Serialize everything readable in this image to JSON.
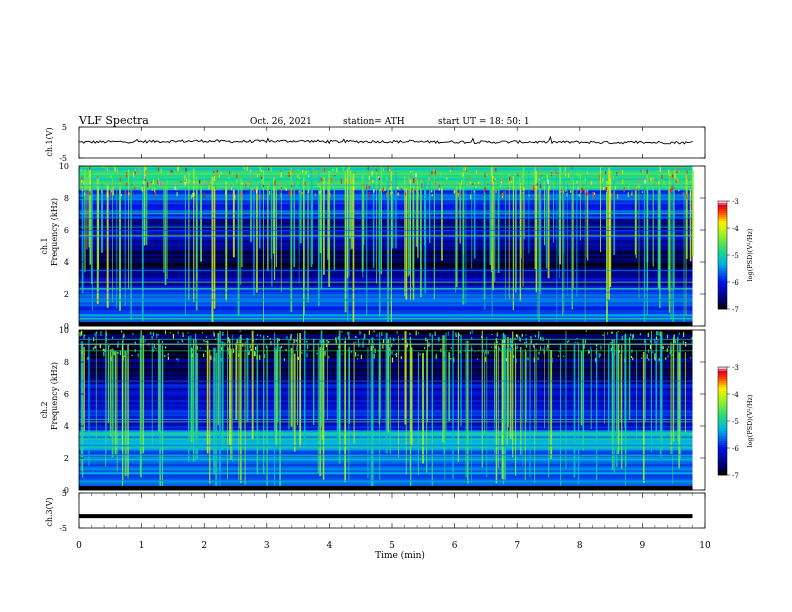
{
  "header": {
    "title": "VLF  Spectra",
    "date": "Oct. 26,  2021",
    "station": "station= ATH",
    "start": "start  UT  =    18: 50: 1"
  },
  "chart_data": [
    {
      "type": "line",
      "id": "ch1_waveform",
      "ylabel": "ch.1(V)",
      "ylim": [
        -5,
        5
      ],
      "yticks": [
        "5",
        "-5"
      ],
      "xlim": [
        0,
        10
      ],
      "series": [
        {
          "color": "#000000",
          "note": "noisy baseline signal slightly above 0 V across 0 to 9.8 min",
          "x": [
            0,
            0.5,
            1.0,
            1.5,
            2.0,
            2.5,
            3.0,
            3.5,
            4.0,
            4.5,
            5.0,
            5.5,
            6.0,
            6.5,
            7.0,
            7.5,
            8.0,
            8.5,
            9.0,
            9.5,
            9.8
          ],
          "y": [
            0.1,
            0.2,
            0.3,
            0.4,
            0.5,
            0.3,
            0.4,
            0.5,
            0.3,
            0.3,
            0.3,
            0.2,
            0.2,
            0.1,
            0.2,
            0.1,
            0.1,
            0.0,
            0.0,
            0.0,
            -0.1
          ]
        }
      ]
    },
    {
      "type": "heatmap",
      "id": "ch1_spectrogram",
      "ylabel": "ch.1\nFrequency  (kHz)",
      "ylim": [
        0,
        10
      ],
      "yticks": [
        "0",
        "2",
        "4",
        "6",
        "8",
        "10"
      ],
      "xlim": [
        0,
        9.8
      ],
      "colorbar": {
        "label": "log(PSD)(V²/Hz)",
        "range": [
          -7,
          -3
        ],
        "ticks": [
          "-3",
          "-4",
          "-5",
          "-6",
          "-7"
        ]
      },
      "bands_khz": [
        {
          "f0": 0.0,
          "f1": 0.3,
          "level": -7.0
        },
        {
          "f0": 0.3,
          "f1": 1.0,
          "level": -5.5
        },
        {
          "f0": 1.0,
          "f1": 2.5,
          "level": -5.7
        },
        {
          "f0": 2.5,
          "f1": 3.5,
          "level": -6.3
        },
        {
          "f0": 3.5,
          "f1": 4.8,
          "level": -6.8
        },
        {
          "f0": 4.8,
          "f1": 6.0,
          "level": -6.3
        },
        {
          "f0": 6.0,
          "f1": 6.8,
          "level": -6.5
        },
        {
          "f0": 6.8,
          "f1": 8.5,
          "level": -5.8
        },
        {
          "f0": 8.5,
          "f1": 10.0,
          "level": -4.9
        }
      ]
    },
    {
      "type": "heatmap",
      "id": "ch2_spectrogram",
      "ylabel": "ch.2\nFrequency  (kHz)",
      "ylim": [
        0,
        10
      ],
      "yticks": [
        "0",
        "2",
        "4",
        "6",
        "8",
        "10"
      ],
      "xlim": [
        0,
        9.8
      ],
      "colorbar": {
        "label": "log(PSD)(V²/Hz)",
        "range": [
          -7,
          -3
        ],
        "ticks": [
          "-3",
          "-4",
          "-5",
          "-6",
          "-7"
        ]
      },
      "bands_khz": [
        {
          "f0": 0.0,
          "f1": 0.3,
          "level": -7.0
        },
        {
          "f0": 0.3,
          "f1": 2.6,
          "level": -5.6
        },
        {
          "f0": 2.6,
          "f1": 3.8,
          "level": -5.3
        },
        {
          "f0": 3.8,
          "f1": 5.2,
          "level": -6.0
        },
        {
          "f0": 5.2,
          "f1": 6.6,
          "level": -6.2
        },
        {
          "f0": 6.6,
          "f1": 8.2,
          "level": -6.7
        },
        {
          "f0": 8.2,
          "f1": 10.0,
          "level": -6.9
        }
      ]
    },
    {
      "type": "line",
      "id": "ch3_waveform",
      "ylabel": "ch.3(V)",
      "ylim": [
        -5,
        5
      ],
      "yticks": [
        "5",
        "-5"
      ],
      "xlim": [
        0,
        10
      ],
      "xlabel": "Time  (min)",
      "xticks": [
        "0",
        "1",
        "2",
        "3",
        "4",
        "5",
        "6",
        "7",
        "8",
        "9",
        "10"
      ],
      "series": [
        {
          "color": "#000000",
          "x": [
            0,
            9.8
          ],
          "y": [
            -1.6,
            -1.6
          ]
        }
      ]
    }
  ]
}
